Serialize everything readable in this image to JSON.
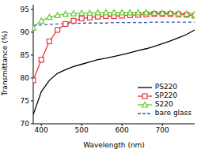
{
  "chart_data": {
    "type": "line",
    "x_label": "Wavelength (nm)",
    "y_label": "Transmittance (%)",
    "x": [
      380,
      400,
      420,
      440,
      460,
      480,
      500,
      520,
      540,
      560,
      580,
      600,
      620,
      640,
      660,
      680,
      700,
      720,
      740,
      760,
      780
    ],
    "xlim": [
      380,
      780
    ],
    "xticks": [
      400,
      500,
      600,
      700
    ],
    "ylim": [
      70,
      96
    ],
    "yticks": [
      70,
      75,
      80,
      85,
      90,
      95
    ],
    "legend": "lower right",
    "series": [
      {
        "name": "PS220",
        "color": "#000000",
        "marker": "none",
        "line_style": "solid",
        "values": [
          72,
          77,
          79.5,
          81,
          81.8,
          82.5,
          83,
          83.5,
          84,
          84.3,
          84.7,
          85.1,
          85.5,
          86,
          86.4,
          86.9,
          87.5,
          88.1,
          88.8,
          89.5,
          90.5
        ]
      },
      {
        "name": "SP220",
        "color": "#e8363a",
        "marker": "square",
        "line_style": "solid",
        "values": [
          79.5,
          84,
          88,
          90.5,
          91.8,
          92.5,
          93,
          93.2,
          93.4,
          93.5,
          93.5,
          93.6,
          93.7,
          93.8,
          93.9,
          94,
          94,
          94,
          93.9,
          93.8,
          93.6
        ]
      },
      {
        "name": "S220",
        "color": "#66cc33",
        "marker": "triangle",
        "line_style": "solid",
        "values": [
          91,
          92.5,
          93.3,
          93.7,
          94,
          94.1,
          94.2,
          94.2,
          94.3,
          94.3,
          94.3,
          94.3,
          94.3,
          94.3,
          94.3,
          94.2,
          94.2,
          94.2,
          94.1,
          94,
          94
        ]
      },
      {
        "name": "bare glass",
        "color": "#3355aa",
        "marker": "none",
        "line_style": "dashed",
        "values": [
          91.5,
          91.6,
          91.7,
          91.8,
          91.9,
          91.9,
          92,
          92,
          92,
          92,
          92.1,
          92.1,
          92.1,
          92.1,
          92.1,
          92.2,
          92.2,
          92.2,
          92.2,
          92.2,
          92.2
        ]
      }
    ]
  }
}
